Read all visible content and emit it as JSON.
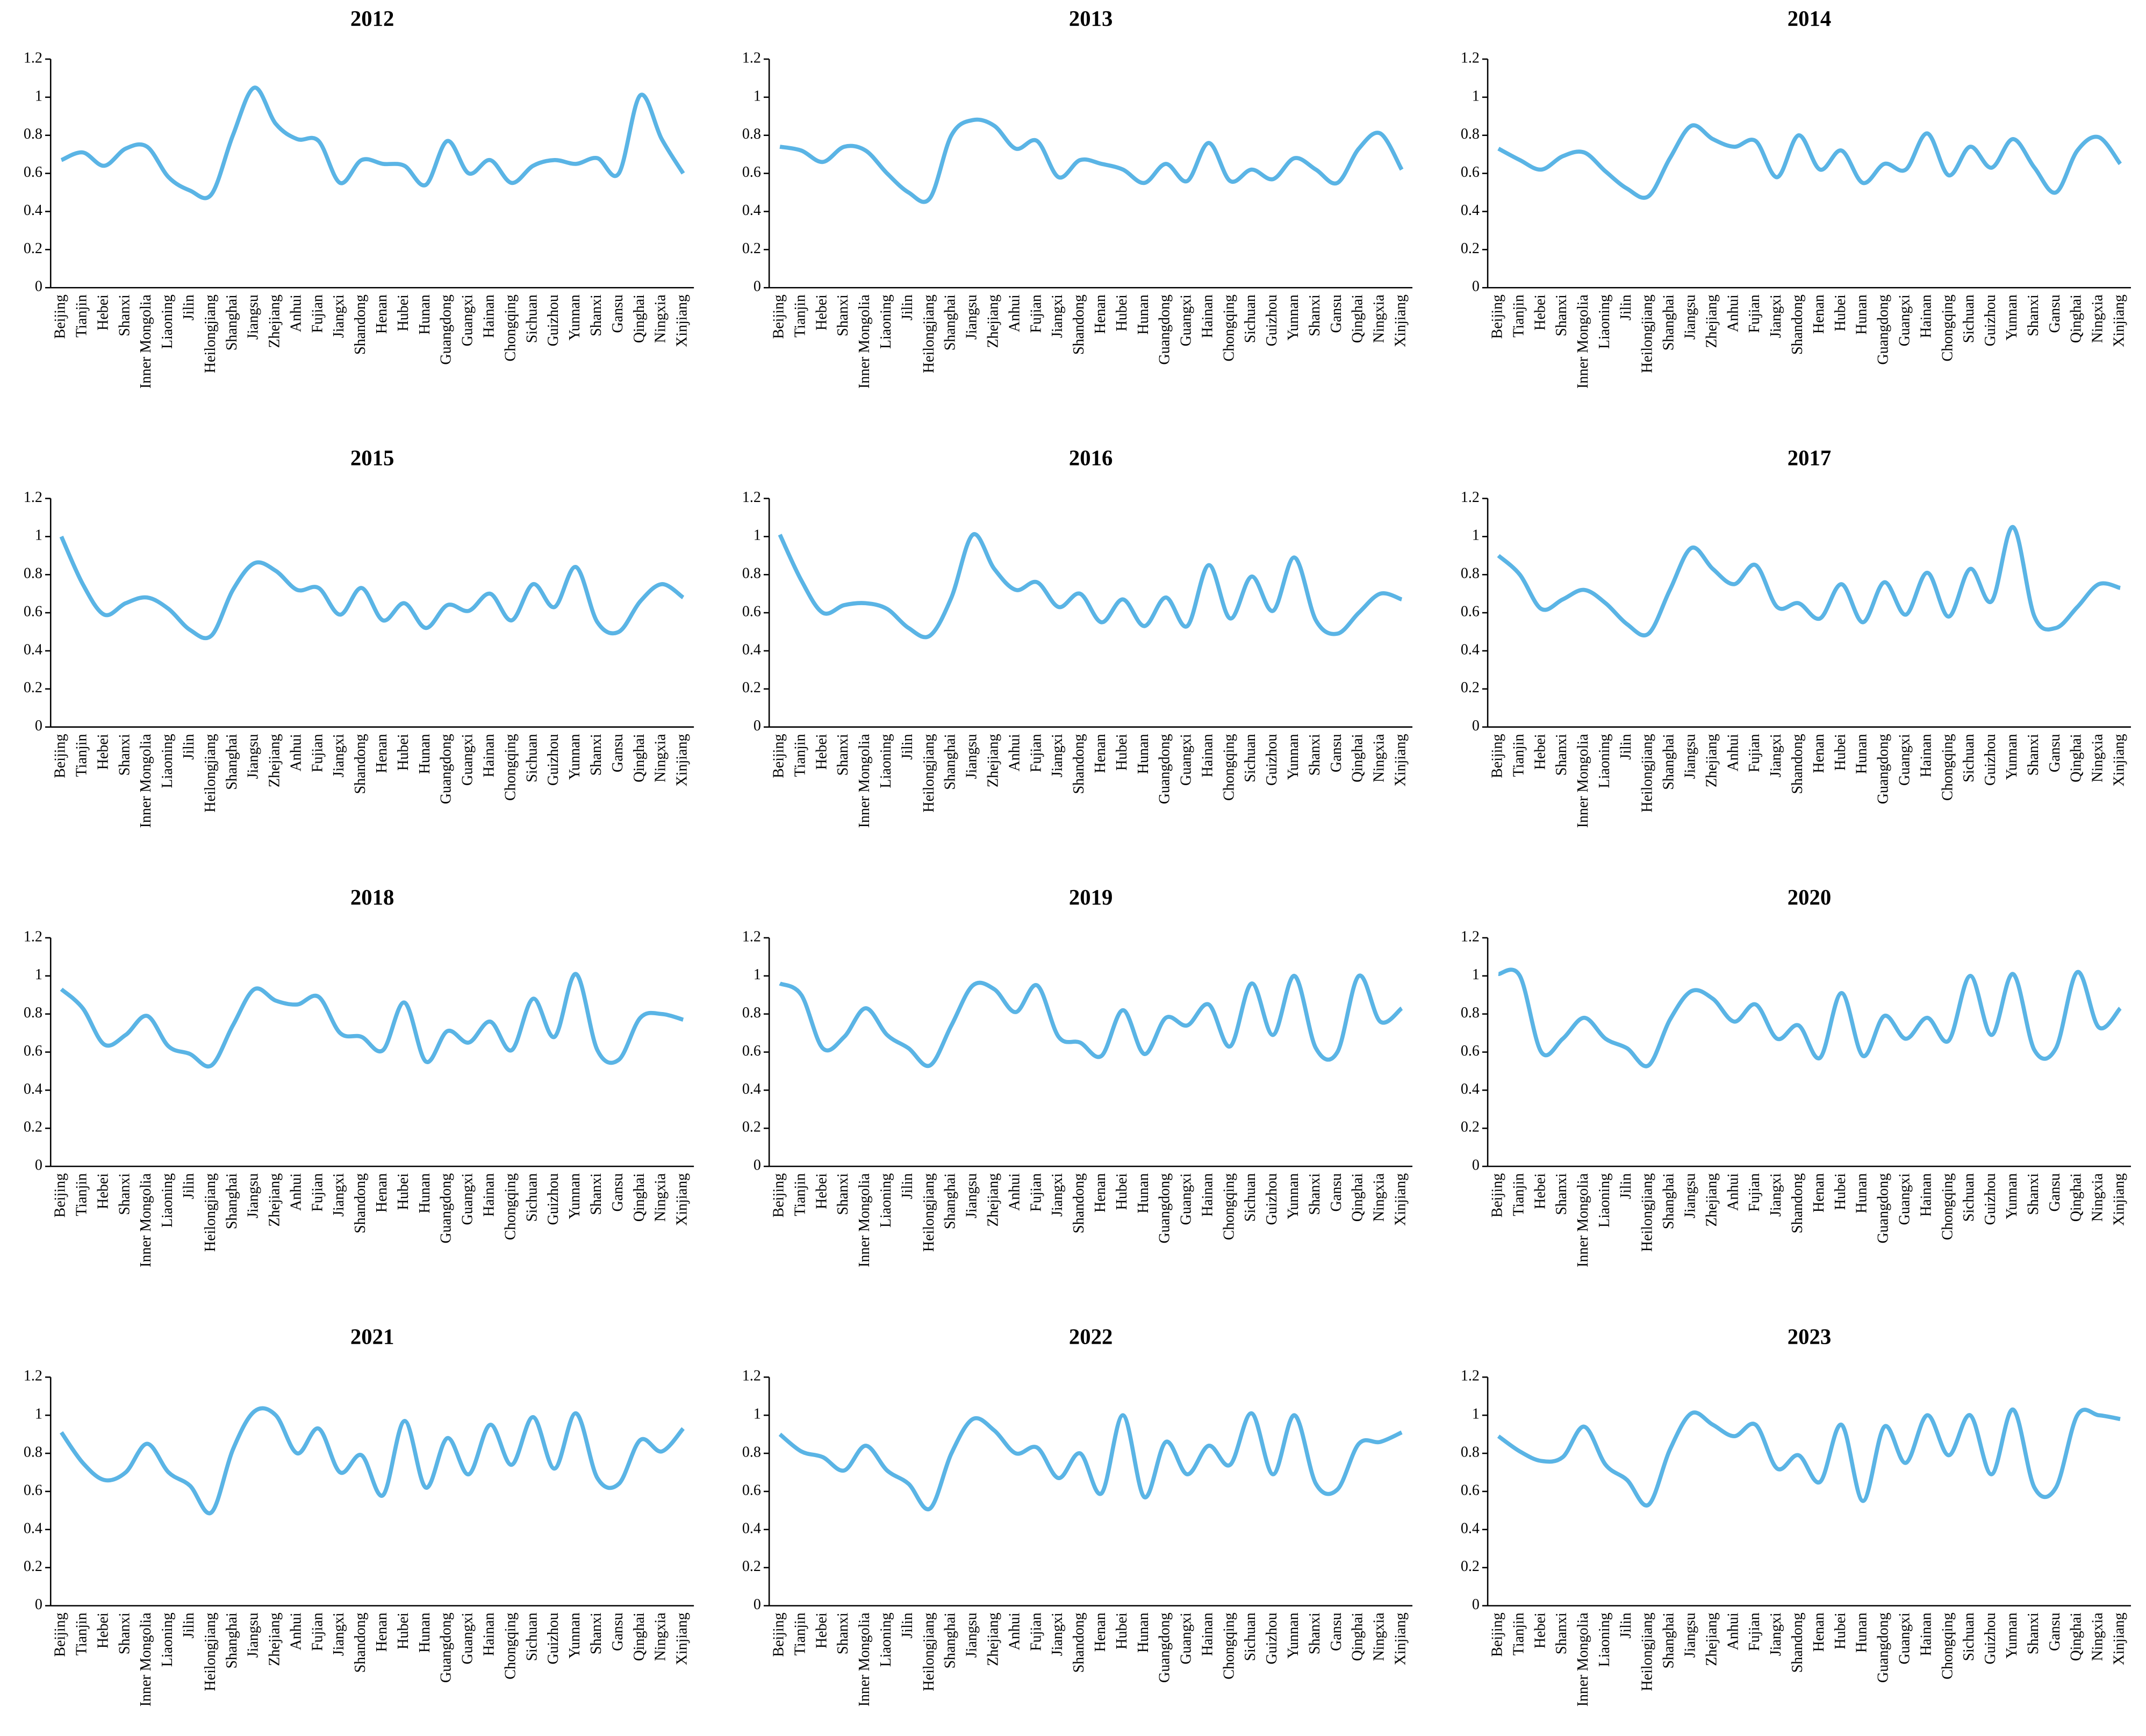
{
  "chart_data": [
    {
      "type": "line",
      "title": "2012",
      "categories": [
        "Beijing",
        "Tianjin",
        "Hebei",
        "Shanxi",
        "Inner Mongolia",
        "Liaoning",
        "Jilin",
        "Heilongjiang",
        "Shanghai",
        "Jiangsu",
        "Zhejiang",
        "Anhui",
        "Fujian",
        "Jiangxi",
        "Shandong",
        "Henan",
        "Hubei",
        "Hunan",
        "Guangdong",
        "Guangxi",
        "Hainan",
        "Chongqing",
        "Sichuan",
        "Guizhou",
        "Yunnan",
        "Shanxi",
        "Gansu",
        "Qinghai",
        "Ningxia",
        "Xinjiang"
      ],
      "values": [
        0.67,
        0.71,
        0.64,
        0.73,
        0.74,
        0.58,
        0.51,
        0.49,
        0.8,
        1.05,
        0.86,
        0.78,
        0.77,
        0.55,
        0.67,
        0.65,
        0.64,
        0.54,
        0.77,
        0.6,
        0.67,
        0.55,
        0.64,
        0.67,
        0.65,
        0.68,
        0.6,
        1.01,
        0.78,
        0.6
      ],
      "color": "#5ab4e5",
      "ylim": [
        0,
        1.2
      ],
      "yticks": [
        0,
        0.2,
        0.4,
        0.6,
        0.8,
        1,
        1.2
      ]
    },
    {
      "type": "line",
      "title": "2013",
      "categories": [
        "Beijing",
        "Tianjin",
        "Hebei",
        "Shanxi",
        "Inner Mongolia",
        "Liaoning",
        "Jilin",
        "Heilongjiang",
        "Shanghai",
        "Jiangsu",
        "Zhejiang",
        "Anhui",
        "Fujian",
        "Jiangxi",
        "Shandong",
        "Henan",
        "Hubei",
        "Hunan",
        "Guangdong",
        "Guangxi",
        "Hainan",
        "Chongqing",
        "Sichuan",
        "Guizhou",
        "Yunnan",
        "Shanxi",
        "Gansu",
        "Qinghai",
        "Ningxia",
        "Xinjiang"
      ],
      "values": [
        0.74,
        0.72,
        0.66,
        0.74,
        0.72,
        0.6,
        0.5,
        0.47,
        0.8,
        0.88,
        0.85,
        0.73,
        0.77,
        0.58,
        0.67,
        0.65,
        0.62,
        0.55,
        0.65,
        0.56,
        0.76,
        0.56,
        0.62,
        0.57,
        0.68,
        0.62,
        0.55,
        0.73,
        0.81,
        0.62
      ],
      "color": "#5ab4e5",
      "ylim": [
        0,
        1.2
      ],
      "yticks": [
        0,
        0.2,
        0.4,
        0.6,
        0.8,
        1,
        1.2
      ]
    },
    {
      "type": "line",
      "title": "2014",
      "categories": [
        "Beijing",
        "Tianjin",
        "Hebei",
        "Shanxi",
        "Inner Mongolia",
        "Liaoning",
        "Jilin",
        "Heilongjiang",
        "Shanghai",
        "Jiangsu",
        "Zhejiang",
        "Anhui",
        "Fujian",
        "Jiangxi",
        "Shandong",
        "Henan",
        "Hubei",
        "Hunan",
        "Guangdong",
        "Guangxi",
        "Hainan",
        "Chongqing",
        "Sichuan",
        "Guizhou",
        "Yunnan",
        "Shanxi",
        "Gansu",
        "Qinghai",
        "Ningxia",
        "Xinjiang"
      ],
      "values": [
        0.73,
        0.67,
        0.62,
        0.69,
        0.71,
        0.61,
        0.52,
        0.48,
        0.68,
        0.85,
        0.78,
        0.74,
        0.77,
        0.58,
        0.8,
        0.62,
        0.72,
        0.55,
        0.65,
        0.62,
        0.81,
        0.59,
        0.74,
        0.63,
        0.78,
        0.63,
        0.5,
        0.72,
        0.79,
        0.65
      ],
      "color": "#5ab4e5",
      "ylim": [
        0,
        1.2
      ],
      "yticks": [
        0,
        0.2,
        0.4,
        0.6,
        0.8,
        1,
        1.2
      ]
    },
    {
      "type": "line",
      "title": "2015",
      "categories": [
        "Beijing",
        "Tianjin",
        "Hebei",
        "Shanxi",
        "Inner Mongolia",
        "Liaoning",
        "Jilin",
        "Heilongjiang",
        "Shanghai",
        "Jiangsu",
        "Zhejiang",
        "Anhui",
        "Fujian",
        "Jiangxi",
        "Shandong",
        "Henan",
        "Hubei",
        "Hunan",
        "Guangdong",
        "Guangxi",
        "Hainan",
        "Chongqing",
        "Sichuan",
        "Guizhou",
        "Yunnan",
        "Shanxi",
        "Gansu",
        "Qinghai",
        "Ningxia",
        "Xinjiang"
      ],
      "values": [
        1.0,
        0.75,
        0.59,
        0.65,
        0.68,
        0.62,
        0.51,
        0.48,
        0.72,
        0.86,
        0.82,
        0.72,
        0.73,
        0.59,
        0.73,
        0.56,
        0.65,
        0.52,
        0.64,
        0.61,
        0.7,
        0.56,
        0.75,
        0.63,
        0.84,
        0.55,
        0.5,
        0.66,
        0.75,
        0.68
      ],
      "color": "#5ab4e5",
      "ylim": [
        0,
        1.2
      ],
      "yticks": [
        0,
        0.2,
        0.4,
        0.6,
        0.8,
        1,
        1.2
      ]
    },
    {
      "type": "line",
      "title": "2016",
      "categories": [
        "Beijing",
        "Tianjin",
        "Hebei",
        "Shanxi",
        "Inner Mongolia",
        "Liaoning",
        "Jilin",
        "Heilongjiang",
        "Shanghai",
        "Jiangsu",
        "Zhejiang",
        "Anhui",
        "Fujian",
        "Jiangxi",
        "Shandong",
        "Henan",
        "Hubei",
        "Hunan",
        "Guangdong",
        "Guangxi",
        "Hainan",
        "Chongqing",
        "Sichuan",
        "Guizhou",
        "Yunnan",
        "Shanxi",
        "Gansu",
        "Qinghai",
        "Ningxia",
        "Xinjiang"
      ],
      "values": [
        1.01,
        0.77,
        0.6,
        0.64,
        0.65,
        0.62,
        0.52,
        0.48,
        0.68,
        1.01,
        0.83,
        0.72,
        0.76,
        0.63,
        0.7,
        0.55,
        0.67,
        0.53,
        0.68,
        0.53,
        0.85,
        0.57,
        0.79,
        0.61,
        0.89,
        0.56,
        0.49,
        0.6,
        0.7,
        0.67
      ],
      "color": "#5ab4e5",
      "ylim": [
        0,
        1.2
      ],
      "yticks": [
        0,
        0.2,
        0.4,
        0.6,
        0.8,
        1,
        1.2
      ]
    },
    {
      "type": "line",
      "title": "2017",
      "categories": [
        "Beijing",
        "Tianjin",
        "Hebei",
        "Shanxi",
        "Inner Mongolia",
        "Liaoning",
        "Jilin",
        "Heilongjiang",
        "Shanghai",
        "Jiangsu",
        "Zhejiang",
        "Anhui",
        "Fujian",
        "Jiangxi",
        "Shandong",
        "Henan",
        "Hubei",
        "Hunan",
        "Guangdong",
        "Guangxi",
        "Hainan",
        "Chongqing",
        "Sichuan",
        "Guizhou",
        "Yunnan",
        "Shanxi",
        "Gansu",
        "Qinghai",
        "Ningxia",
        "Xinjiang"
      ],
      "values": [
        0.9,
        0.8,
        0.62,
        0.67,
        0.72,
        0.65,
        0.54,
        0.49,
        0.72,
        0.94,
        0.83,
        0.75,
        0.85,
        0.63,
        0.65,
        0.57,
        0.75,
        0.55,
        0.76,
        0.59,
        0.81,
        0.58,
        0.83,
        0.66,
        1.05,
        0.58,
        0.52,
        0.63,
        0.75,
        0.73
      ],
      "color": "#5ab4e5",
      "ylim": [
        0,
        1.2
      ],
      "yticks": [
        0,
        0.2,
        0.4,
        0.6,
        0.8,
        1,
        1.2
      ]
    },
    {
      "type": "line",
      "title": "2018",
      "categories": [
        "Beijing",
        "Tianjin",
        "Hebei",
        "Shanxi",
        "Inner Mongolia",
        "Liaoning",
        "Jilin",
        "Heilongjiang",
        "Shanghai",
        "Jiangsu",
        "Zhejiang",
        "Anhui",
        "Fujian",
        "Jiangxi",
        "Shandong",
        "Henan",
        "Hubei",
        "Hunan",
        "Guangdong",
        "Guangxi",
        "Hainan",
        "Chongqing",
        "Sichuan",
        "Guizhou",
        "Yunnan",
        "Shanxi",
        "Gansu",
        "Qinghai",
        "Ningxia",
        "Xinjiang"
      ],
      "values": [
        0.93,
        0.83,
        0.64,
        0.69,
        0.79,
        0.63,
        0.59,
        0.53,
        0.74,
        0.93,
        0.87,
        0.85,
        0.89,
        0.7,
        0.68,
        0.61,
        0.86,
        0.55,
        0.71,
        0.65,
        0.76,
        0.61,
        0.88,
        0.68,
        1.01,
        0.61,
        0.56,
        0.78,
        0.8,
        0.77
      ],
      "color": "#5ab4e5",
      "ylim": [
        0,
        1.2
      ],
      "yticks": [
        0,
        0.2,
        0.4,
        0.6,
        0.8,
        1,
        1.2
      ]
    },
    {
      "type": "line",
      "title": "2019",
      "categories": [
        "Beijing",
        "Tianjin",
        "Hebei",
        "Shanxi",
        "Inner Mongolia",
        "Liaoning",
        "Jilin",
        "Heilongjiang",
        "Shanghai",
        "Jiangsu",
        "Zhejiang",
        "Anhui",
        "Fujian",
        "Jiangxi",
        "Shandong",
        "Henan",
        "Hubei",
        "Hunan",
        "Guangdong",
        "Guangxi",
        "Hainan",
        "Chongqing",
        "Sichuan",
        "Guizhou",
        "Yunnan",
        "Shanxi",
        "Gansu",
        "Qinghai",
        "Ningxia",
        "Xinjiang"
      ],
      "values": [
        0.96,
        0.9,
        0.62,
        0.68,
        0.83,
        0.69,
        0.62,
        0.53,
        0.74,
        0.95,
        0.93,
        0.81,
        0.95,
        0.68,
        0.65,
        0.58,
        0.82,
        0.59,
        0.78,
        0.74,
        0.85,
        0.63,
        0.96,
        0.69,
        1.0,
        0.62,
        0.6,
        1.0,
        0.76,
        0.83
      ],
      "color": "#5ab4e5",
      "ylim": [
        0,
        1.2
      ],
      "yticks": [
        0,
        0.2,
        0.4,
        0.6,
        0.8,
        1,
        1.2
      ]
    },
    {
      "type": "line",
      "title": "2020",
      "categories": [
        "Beijing",
        "Tianjin",
        "Hebei",
        "Shanxi",
        "Inner Mongolia",
        "Liaoning",
        "Jilin",
        "Heilongjiang",
        "Shanghai",
        "Jiangsu",
        "Zhejiang",
        "Anhui",
        "Fujian",
        "Jiangxi",
        "Shandong",
        "Henan",
        "Hubei",
        "Hunan",
        "Guangdong",
        "Guangxi",
        "Hainan",
        "Chongqing",
        "Sichuan",
        "Guizhou",
        "Yunnan",
        "Shanxi",
        "Gansu",
        "Qinghai",
        "Ningxia",
        "Xinjiang"
      ],
      "values": [
        1.01,
        1.0,
        0.6,
        0.67,
        0.78,
        0.67,
        0.62,
        0.53,
        0.77,
        0.92,
        0.88,
        0.76,
        0.85,
        0.67,
        0.74,
        0.57,
        0.91,
        0.58,
        0.79,
        0.67,
        0.78,
        0.66,
        1.0,
        0.69,
        1.01,
        0.61,
        0.62,
        1.02,
        0.73,
        0.83
      ],
      "color": "#5ab4e5",
      "ylim": [
        0,
        1.2
      ],
      "yticks": [
        0,
        0.2,
        0.4,
        0.6,
        0.8,
        1,
        1.2
      ]
    },
    {
      "type": "line",
      "title": "2021",
      "categories": [
        "Beijing",
        "Tianjin",
        "Hebei",
        "Shanxi",
        "Inner Mongolia",
        "Liaoning",
        "Jilin",
        "Heilongjiang",
        "Shanghai",
        "Jiangsu",
        "Zhejiang",
        "Anhui",
        "Fujian",
        "Jiangxi",
        "Shandong",
        "Henan",
        "Hubei",
        "Hunan",
        "Guangdong",
        "Guangxi",
        "Hainan",
        "Chongqing",
        "Sichuan",
        "Guizhou",
        "Yunnan",
        "Shanxi",
        "Gansu",
        "Qinghai",
        "Ningxia",
        "Xinjiang"
      ],
      "values": [
        0.91,
        0.75,
        0.66,
        0.7,
        0.85,
        0.7,
        0.63,
        0.49,
        0.82,
        1.02,
        1.0,
        0.8,
        0.93,
        0.7,
        0.79,
        0.58,
        0.97,
        0.62,
        0.88,
        0.69,
        0.95,
        0.74,
        0.99,
        0.72,
        1.01,
        0.67,
        0.64,
        0.87,
        0.81,
        0.93
      ],
      "color": "#5ab4e5",
      "ylim": [
        0,
        1.2
      ],
      "yticks": [
        0,
        0.2,
        0.4,
        0.6,
        0.8,
        1,
        1.2
      ]
    },
    {
      "type": "line",
      "title": "2022",
      "categories": [
        "Beijing",
        "Tianjin",
        "Hebei",
        "Shanxi",
        "Inner Mongolia",
        "Liaoning",
        "Jilin",
        "Heilongjiang",
        "Shanghai",
        "Jiangsu",
        "Zhejiang",
        "Anhui",
        "Fujian",
        "Jiangxi",
        "Shandong",
        "Henan",
        "Hubei",
        "Hunan",
        "Guangdong",
        "Guangxi",
        "Hainan",
        "Chongqing",
        "Sichuan",
        "Guizhou",
        "Yunnan",
        "Shanxi",
        "Gansu",
        "Qinghai",
        "Ningxia",
        "Xinjiang"
      ],
      "values": [
        0.9,
        0.81,
        0.78,
        0.71,
        0.84,
        0.71,
        0.64,
        0.51,
        0.8,
        0.98,
        0.92,
        0.8,
        0.83,
        0.67,
        0.8,
        0.59,
        1.0,
        0.57,
        0.86,
        0.69,
        0.84,
        0.74,
        1.01,
        0.69,
        1.0,
        0.64,
        0.61,
        0.85,
        0.86,
        0.91
      ],
      "color": "#5ab4e5",
      "ylim": [
        0,
        1.2
      ],
      "yticks": [
        0,
        0.2,
        0.4,
        0.6,
        0.8,
        1,
        1.2
      ]
    },
    {
      "type": "line",
      "title": "2023",
      "categories": [
        "Beijing",
        "Tianjin",
        "Hebei",
        "Shanxi",
        "Inner Mongolia",
        "Liaoning",
        "Jilin",
        "Heilongjiang",
        "Shanghai",
        "Jiangsu",
        "Zhejiang",
        "Anhui",
        "Fujian",
        "Jiangxi",
        "Shandong",
        "Henan",
        "Hubei",
        "Hunan",
        "Guangdong",
        "Guangxi",
        "Hainan",
        "Chongqing",
        "Sichuan",
        "Guizhou",
        "Yunnan",
        "Shanxi",
        "Gansu",
        "Qinghai",
        "Ningxia",
        "Xinjiang"
      ],
      "values": [
        0.89,
        0.81,
        0.76,
        0.78,
        0.94,
        0.74,
        0.66,
        0.53,
        0.82,
        1.01,
        0.95,
        0.89,
        0.95,
        0.72,
        0.79,
        0.65,
        0.95,
        0.55,
        0.94,
        0.75,
        1.0,
        0.79,
        1.0,
        0.69,
        1.03,
        0.62,
        0.62,
        1.0,
        1.0,
        0.98
      ],
      "color": "#5ab4e5",
      "ylim": [
        0,
        1.2
      ],
      "yticks": [
        0,
        0.2,
        0.4,
        0.6,
        0.8,
        1,
        1.2
      ]
    }
  ]
}
